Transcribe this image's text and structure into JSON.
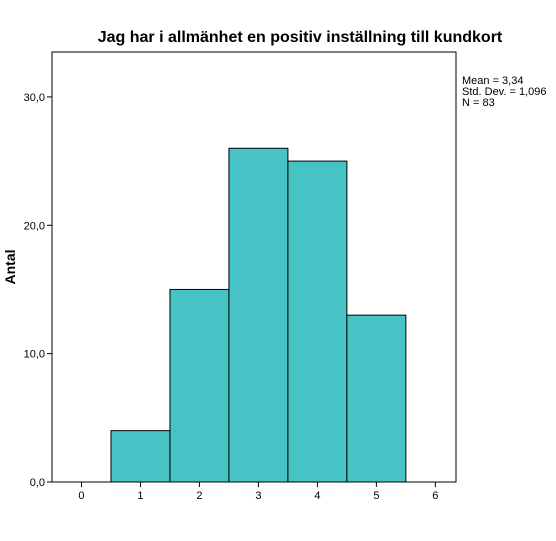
{
  "chart_data": {
    "type": "bar",
    "title": "Jag har i allmänhet en positiv inställning till kundkort",
    "xlabel": "",
    "ylabel": "Antal",
    "xlim": [
      -0.5,
      6.35
    ],
    "ylim": [
      0,
      33.5
    ],
    "x_ticks": [
      "0",
      "1",
      "2",
      "3",
      "4",
      "5",
      "6"
    ],
    "y_ticks": [
      "0,0",
      "10,0",
      "20,0",
      "30,0"
    ],
    "categories": [
      "1",
      "2",
      "3",
      "4",
      "5"
    ],
    "values": [
      4,
      15,
      26,
      25,
      13
    ],
    "grid": false,
    "stats": {
      "mean": "Mean = 3,34",
      "std": "Std. Dev. = 1,096",
      "n": "N = 83"
    },
    "colors": {
      "bar_fill": "#47c3c6",
      "bar_stroke": "#000000",
      "axis": "#000000"
    }
  }
}
